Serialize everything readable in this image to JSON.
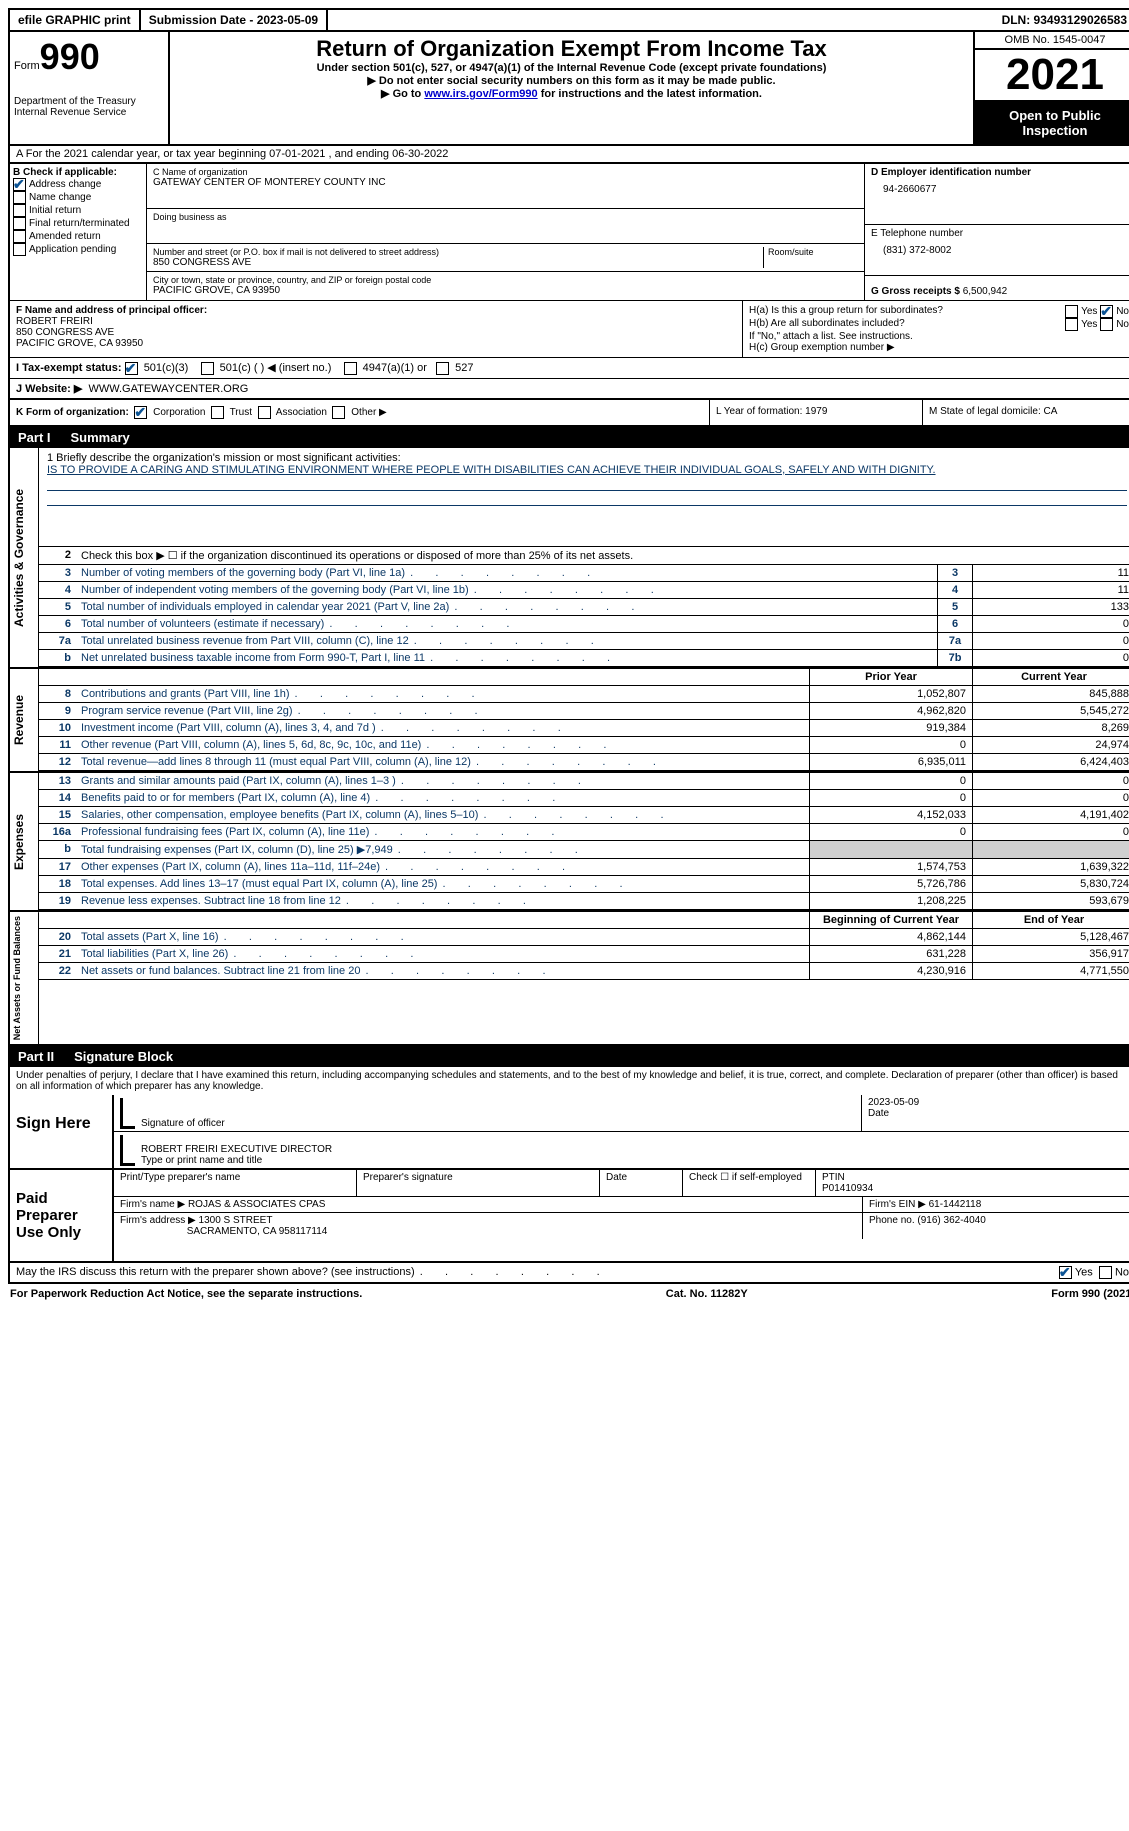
{
  "topbar": {
    "efile": "efile GRAPHIC print",
    "submission": "Submission Date - 2023-05-09",
    "dln": "DLN: 93493129026583"
  },
  "header": {
    "form_word": "Form",
    "form_num": "990",
    "dept": "Department of the Treasury",
    "irs": "Internal Revenue Service",
    "title": "Return of Organization Exempt From Income Tax",
    "sub1": "Under section 501(c), 527, or 4947(a)(1) of the Internal Revenue Code (except private foundations)",
    "sub2": "▶ Do not enter social security numbers on this form as it may be made public.",
    "sub3_pre": "▶ Go to ",
    "sub3_link": "www.irs.gov/Form990",
    "sub3_post": " for instructions and the latest information.",
    "omb": "OMB No. 1545-0047",
    "year": "2021",
    "pub": "Open to Public Inspection"
  },
  "row_a": "A  For the 2021 calendar year, or tax year beginning 07-01-2021    , and ending 06-30-2022",
  "col_b": {
    "label": "B Check if applicable:",
    "opts": [
      "Address change",
      "Name change",
      "Initial return",
      "Final return/terminated",
      "Amended return",
      "Application pending"
    ]
  },
  "col_c": {
    "name_label": "C Name of organization",
    "name": "GATEWAY CENTER OF MONTEREY COUNTY INC",
    "dba_label": "Doing business as",
    "addr_label": "Number and street (or P.O. box if mail is not delivered to street address)",
    "room_label": "Room/suite",
    "addr": "850 CONGRESS AVE",
    "city_label": "City or town, state or province, country, and ZIP or foreign postal code",
    "city": "PACIFIC GROVE, CA   93950"
  },
  "col_d": {
    "ein_label": "D Employer identification number",
    "ein": "94-2660677",
    "tel_label": "E Telephone number",
    "tel": "(831) 372-8002",
    "gross_label": "G Gross receipts $",
    "gross": "6,500,942"
  },
  "row_f": {
    "label": "F  Name and address of principal officer:",
    "name": "ROBERT FREIRI",
    "addr1": "850 CONGRESS AVE",
    "addr2": "PACIFIC GROVE, CA  93950"
  },
  "row_h": {
    "ha": "H(a)  Is this a group return for subordinates?",
    "hb": "H(b)  Are all subordinates included?",
    "hb_note": "If \"No,\" attach a list. See instructions.",
    "hc": "H(c)  Group exemption number ▶",
    "yes": "Yes",
    "no": "No"
  },
  "row_i": {
    "label": "I    Tax-exempt status:",
    "o1": "501(c)(3)",
    "o2": "501(c) (  ) ◀ (insert no.)",
    "o3": "4947(a)(1) or",
    "o4": "527"
  },
  "row_j": {
    "label": "J   Website: ▶",
    "val": "WWW.GATEWAYCENTER.ORG"
  },
  "row_k": {
    "label": "K Form of organization:",
    "opts": [
      "Corporation",
      "Trust",
      "Association",
      "Other ▶"
    ],
    "l": "L Year of formation: 1979",
    "m": "M State of legal domicile: CA"
  },
  "part1": {
    "num": "Part I",
    "title": "Summary"
  },
  "mission_label": "1  Briefly describe the organization's mission or most significant activities:",
  "mission": "IS TO PROVIDE A CARING AND STIMULATING ENVIRONMENT WHERE PEOPLE WITH DISABILITIES CAN ACHIEVE THEIR INDIVIDUAL GOALS, SAFELY AND WITH DIGNITY.",
  "line2": "Check this box ▶ ☐  if the organization discontinued its operations or disposed of more than 25% of its net assets.",
  "vlabels": {
    "gov": "Activities & Governance",
    "rev": "Revenue",
    "exp": "Expenses",
    "net": "Net Assets or Fund Balances"
  },
  "col_headers": {
    "prior": "Prior Year",
    "current": "Current Year",
    "boy": "Beginning of Current Year",
    "eoy": "End of Year"
  },
  "gov_lines": [
    {
      "n": "3",
      "d": "Number of voting members of the governing body (Part VI, line 1a)",
      "b": "3",
      "v": "11"
    },
    {
      "n": "4",
      "d": "Number of independent voting members of the governing body (Part VI, line 1b)",
      "b": "4",
      "v": "11"
    },
    {
      "n": "5",
      "d": "Total number of individuals employed in calendar year 2021 (Part V, line 2a)",
      "b": "5",
      "v": "133"
    },
    {
      "n": "6",
      "d": "Total number of volunteers (estimate if necessary)",
      "b": "6",
      "v": "0"
    },
    {
      "n": "7a",
      "d": "Total unrelated business revenue from Part VIII, column (C), line 12",
      "b": "7a",
      "v": "0"
    },
    {
      "n": "b",
      "d": "Net unrelated business taxable income from Form 990-T, Part I, line 11",
      "b": "7b",
      "v": "0"
    }
  ],
  "rev_lines": [
    {
      "n": "8",
      "d": "Contributions and grants (Part VIII, line 1h)",
      "p": "1,052,807",
      "c": "845,888"
    },
    {
      "n": "9",
      "d": "Program service revenue (Part VIII, line 2g)",
      "p": "4,962,820",
      "c": "5,545,272"
    },
    {
      "n": "10",
      "d": "Investment income (Part VIII, column (A), lines 3, 4, and 7d )",
      "p": "919,384",
      "c": "8,269"
    },
    {
      "n": "11",
      "d": "Other revenue (Part VIII, column (A), lines 5, 6d, 8c, 9c, 10c, and 11e)",
      "p": "0",
      "c": "24,974"
    },
    {
      "n": "12",
      "d": "Total revenue—add lines 8 through 11 (must equal Part VIII, column (A), line 12)",
      "p": "6,935,011",
      "c": "6,424,403"
    }
  ],
  "exp_lines": [
    {
      "n": "13",
      "d": "Grants and similar amounts paid (Part IX, column (A), lines 1–3 )",
      "p": "0",
      "c": "0"
    },
    {
      "n": "14",
      "d": "Benefits paid to or for members (Part IX, column (A), line 4)",
      "p": "0",
      "c": "0"
    },
    {
      "n": "15",
      "d": "Salaries, other compensation, employee benefits (Part IX, column (A), lines 5–10)",
      "p": "4,152,033",
      "c": "4,191,402"
    },
    {
      "n": "16a",
      "d": "Professional fundraising fees (Part IX, column (A), line 11e)",
      "p": "0",
      "c": "0"
    },
    {
      "n": "b",
      "d": "Total fundraising expenses (Part IX, column (D), line 25) ▶7,949",
      "p": "shaded",
      "c": "shaded"
    },
    {
      "n": "17",
      "d": "Other expenses (Part IX, column (A), lines 11a–11d, 11f–24e)",
      "p": "1,574,753",
      "c": "1,639,322"
    },
    {
      "n": "18",
      "d": "Total expenses. Add lines 13–17 (must equal Part IX, column (A), line 25)",
      "p": "5,726,786",
      "c": "5,830,724"
    },
    {
      "n": "19",
      "d": "Revenue less expenses. Subtract line 18 from line 12",
      "p": "1,208,225",
      "c": "593,679"
    }
  ],
  "net_lines": [
    {
      "n": "20",
      "d": "Total assets (Part X, line 16)",
      "p": "4,862,144",
      "c": "5,128,467"
    },
    {
      "n": "21",
      "d": "Total liabilities (Part X, line 26)",
      "p": "631,228",
      "c": "356,917"
    },
    {
      "n": "22",
      "d": "Net assets or fund balances. Subtract line 21 from line 20",
      "p": "4,230,916",
      "c": "4,771,550"
    }
  ],
  "part2": {
    "num": "Part II",
    "title": "Signature Block"
  },
  "penalty": "Under penalties of perjury, I declare that I have examined this return, including accompanying schedules and statements, and to the best of my knowledge and belief, it is true, correct, and complete. Declaration of preparer (other than officer) is based on all information of which preparer has any knowledge.",
  "sign": {
    "label": "Sign Here",
    "sig_label": "Signature of officer",
    "date_label": "Date",
    "date": "2023-05-09",
    "name_label": "Type or print name and title",
    "name": "ROBERT FREIRI  EXECUTIVE DIRECTOR"
  },
  "paid": {
    "label": "Paid Preparer Use Only",
    "prep_name_label": "Print/Type preparer's name",
    "prep_sig_label": "Preparer's signature",
    "date_label": "Date",
    "self_emp": "Check ☐ if self-employed",
    "ptin_label": "PTIN",
    "ptin": "P01410934",
    "firm_name_label": "Firm's name    ▶",
    "firm_name": "ROJAS & ASSOCIATES CPAS",
    "firm_ein_label": "Firm's EIN ▶",
    "firm_ein": "61-1442118",
    "firm_addr_label": "Firm's address ▶",
    "firm_addr1": "1300 S STREET",
    "firm_addr2": "SACRAMENTO, CA  958117114",
    "phone_label": "Phone no.",
    "phone": "(916) 362-4040"
  },
  "discuss": "May the IRS discuss this return with the preparer shown above? (see instructions)",
  "footer": {
    "left": "For Paperwork Reduction Act Notice, see the separate instructions.",
    "mid": "Cat. No. 11282Y",
    "right": "Form 990 (2021)"
  }
}
